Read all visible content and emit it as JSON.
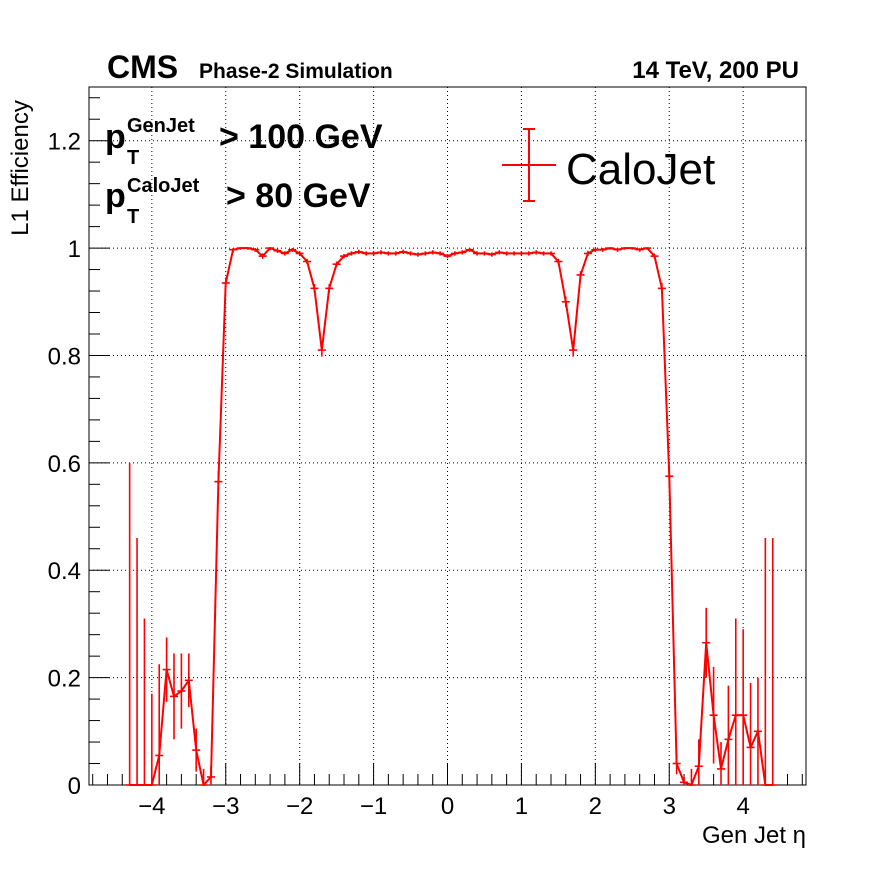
{
  "header": {
    "experiment": "CMS",
    "status": "Phase-2 Simulation",
    "conditions": "14 TeV, 200 PU"
  },
  "cuts": [
    {
      "symbol": "p",
      "subscript": "T",
      "superscript": "GenJet",
      "text": "> 100 GeV"
    },
    {
      "symbol": "p",
      "subscript": "T",
      "superscript": "CaloJet",
      "text": "> 80 GeV"
    }
  ],
  "chart_data": {
    "type": "line",
    "xlabel": "Gen Jet η",
    "ylabel": "L1 Efficiency",
    "xlim": [
      -4.85,
      4.85
    ],
    "ylim": [
      0,
      1.3
    ],
    "xticks": [
      -4,
      -3,
      -2,
      -1,
      0,
      1,
      2,
      3,
      4
    ],
    "xtick_labels": [
      "−4",
      "−3",
      "−2",
      "−1",
      "0",
      "1",
      "2",
      "3",
      "4"
    ],
    "yticks": [
      0,
      0.2,
      0.4,
      0.6,
      0.8,
      1,
      1.2
    ],
    "ytick_labels": [
      "0",
      "0.2",
      "0.4",
      "0.6",
      "0.8",
      "1",
      "1.2"
    ],
    "grid": true,
    "legend_position": "top-right",
    "series": [
      {
        "name": "CaloJet",
        "color": "#ff0000",
        "x": [
          -4.3,
          -4.2,
          -4.1,
          -4.0,
          -3.9,
          -3.8,
          -3.7,
          -3.6,
          -3.5,
          -3.4,
          -3.3,
          -3.2,
          -3.1,
          -3.0,
          -2.9,
          -2.8,
          -2.7,
          -2.6,
          -2.5,
          -2.4,
          -2.3,
          -2.2,
          -2.1,
          -2.0,
          -1.9,
          -1.8,
          -1.7,
          -1.6,
          -1.5,
          -1.4,
          -1.3,
          -1.2,
          -1.1,
          -1.0,
          -0.9,
          -0.8,
          -0.7,
          -0.6,
          -0.5,
          -0.4,
          -0.3,
          -0.2,
          -0.1,
          0.0,
          0.1,
          0.2,
          0.3,
          0.4,
          0.5,
          0.6,
          0.7,
          0.8,
          0.9,
          1.0,
          1.1,
          1.2,
          1.3,
          1.4,
          1.5,
          1.6,
          1.7,
          1.8,
          1.9,
          2.0,
          2.1,
          2.2,
          2.3,
          2.4,
          2.5,
          2.6,
          2.7,
          2.8,
          2.9,
          3.0,
          3.1,
          3.2,
          3.3,
          3.4,
          3.5,
          3.6,
          3.7,
          3.8,
          3.9,
          4.0,
          4.1,
          4.2,
          4.3,
          4.4
        ],
        "y": [
          0.0,
          0.0,
          0.0,
          0.0,
          0.055,
          0.215,
          0.165,
          0.175,
          0.195,
          0.065,
          0.0,
          0.015,
          0.565,
          0.935,
          0.997,
          1.0,
          1.0,
          0.997,
          0.985,
          1.0,
          0.995,
          0.99,
          0.997,
          0.99,
          0.975,
          0.925,
          0.81,
          0.925,
          0.97,
          0.985,
          0.99,
          0.993,
          0.99,
          0.99,
          0.992,
          0.99,
          0.99,
          0.993,
          0.99,
          0.988,
          0.99,
          0.992,
          0.99,
          0.985,
          0.99,
          0.992,
          0.997,
          0.99,
          0.99,
          0.988,
          0.992,
          0.99,
          0.99,
          0.99,
          0.99,
          0.992,
          0.99,
          0.99,
          0.975,
          0.9,
          0.81,
          0.95,
          0.99,
          0.997,
          0.997,
          1.0,
          0.997,
          1.0,
          1.0,
          0.997,
          1.0,
          0.985,
          0.925,
          0.575,
          0.04,
          0.005,
          0.0,
          0.035,
          0.265,
          0.13,
          0.03,
          0.085,
          0.13,
          0.13,
          0.07,
          0.1,
          0.0,
          0.0
        ],
        "yerr": [
          0.6,
          0.46,
          0.31,
          0.17,
          0.17,
          0.06,
          0.08,
          0.07,
          0.05,
          0.04,
          0.03,
          0.02,
          0.02,
          0.01,
          0.005,
          0.003,
          0.003,
          0.004,
          0.005,
          0.004,
          0.004,
          0.004,
          0.004,
          0.004,
          0.005,
          0.008,
          0.012,
          0.008,
          0.005,
          0.004,
          0.004,
          0.004,
          0.004,
          0.004,
          0.004,
          0.004,
          0.004,
          0.004,
          0.004,
          0.004,
          0.004,
          0.004,
          0.004,
          0.004,
          0.004,
          0.004,
          0.004,
          0.004,
          0.004,
          0.004,
          0.004,
          0.004,
          0.004,
          0.004,
          0.004,
          0.004,
          0.004,
          0.004,
          0.005,
          0.01,
          0.012,
          0.007,
          0.005,
          0.004,
          0.004,
          0.003,
          0.004,
          0.003,
          0.003,
          0.004,
          0.003,
          0.005,
          0.01,
          0.02,
          0.02,
          0.01,
          0.03,
          0.05,
          0.065,
          0.09,
          0.05,
          0.1,
          0.18,
          0.16,
          0.12,
          0.1,
          0.46,
          0.46
        ]
      }
    ]
  }
}
